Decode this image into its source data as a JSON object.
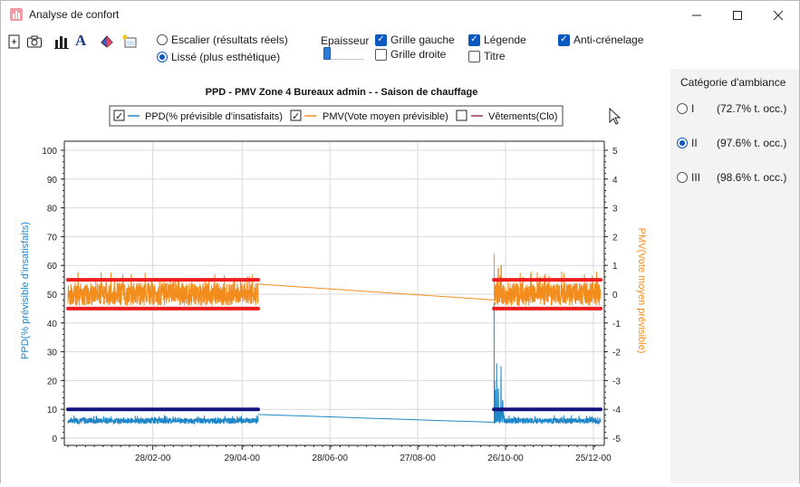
{
  "window": {
    "title": "Analyse de confort"
  },
  "toolbar": {
    "radio_escalier": "Escalier (résultats réels)",
    "radio_lisse": "Lissé (plus esthétique)",
    "epaisseur_label": "Epaisseur",
    "grille_gauche": "Grille gauche",
    "grille_droite": "Grille droite",
    "legende": "Légende",
    "titre": "Titre",
    "anti_crenelage": "Anti-crénelage",
    "font_icon_glyph": "A"
  },
  "side": {
    "title": "Catégorie d'ambiance",
    "options": [
      {
        "label": "I",
        "value": "(72.7% t. occ.)",
        "selected": false
      },
      {
        "label": "II",
        "value": "(97.6% t. occ.)",
        "selected": true
      },
      {
        "label": "III",
        "value": "(98.6% t. occ.)",
        "selected": false
      }
    ]
  },
  "chart_data": {
    "type": "line",
    "title": "PPD - PMV  Zone 4 Bureaux admin -  - Saison de chauffage",
    "ylabel_left": "PPD(% prévisible d'insatisfaits)",
    "ylabel_right": "PMV(Vote moyen prévisible)",
    "y_left_ticks": [
      "0",
      "10",
      "20",
      "30",
      "40",
      "50",
      "60",
      "70",
      "80",
      "90",
      "100"
    ],
    "y_right_ticks": [
      "5",
      "4",
      "3",
      "2",
      "1",
      "0",
      "-1",
      "-2",
      "-3",
      "-4",
      "-5"
    ],
    "ylim_left": [
      0,
      100
    ],
    "ylim_right": [
      -5,
      5
    ],
    "x_ticks": [
      "28/02-00",
      "29/04-00",
      "28/06-00",
      "27/08-00",
      "26/10-00",
      "25/12-00"
    ],
    "x_tick_days": [
      58,
      119,
      179,
      239,
      299,
      359
    ],
    "xlim_days": [
      0,
      364
    ],
    "legend": [
      {
        "label": "PPD(% prévisible d'insatisfaits)",
        "checked": true,
        "color": "#1f86c8"
      },
      {
        "label": "PMV(Vote moyen prévisible)",
        "checked": true,
        "color": "#f28c1d"
      },
      {
        "label": "Vêtements(Clo)",
        "checked": false,
        "color": "#a0304a"
      }
    ],
    "colors": {
      "ppd": "#1f86c8",
      "pmv": "#f28c1d",
      "pmv_limit": "#ee1c1c",
      "ppd_limit": "#141480",
      "grid": "#d9d9d9"
    },
    "pmv_limits": [
      0.5,
      -0.5
    ],
    "ppd_limit": 10,
    "segments": [
      {
        "x_start_days": 0,
        "x_end_days": 130
      },
      {
        "x_start_days": 291,
        "x_end_days": 364
      }
    ],
    "ppd_typical_range": [
      5,
      7
    ],
    "pmv_typical_range": [
      -0.4,
      0.4
    ],
    "ppd_peaks": [
      {
        "day": 291,
        "value": 47
      },
      {
        "day": 293,
        "value": 26
      },
      {
        "day": 294,
        "value": 17
      },
      {
        "day": 296,
        "value": 25
      },
      {
        "day": 297,
        "value": 13
      }
    ],
    "pmv_peaks": [
      {
        "day": 291,
        "value": 1.4
      },
      {
        "day": 294,
        "value": 0.9
      },
      {
        "day": 296,
        "value": 1.0
      }
    ],
    "interp_lines": [
      {
        "series": "pmv",
        "from": [
          130,
          0.35
        ],
        "to": [
          291,
          -0.2
        ]
      },
      {
        "series": "ppd",
        "from": [
          130,
          8.2
        ],
        "to": [
          291,
          5.5
        ]
      }
    ]
  }
}
